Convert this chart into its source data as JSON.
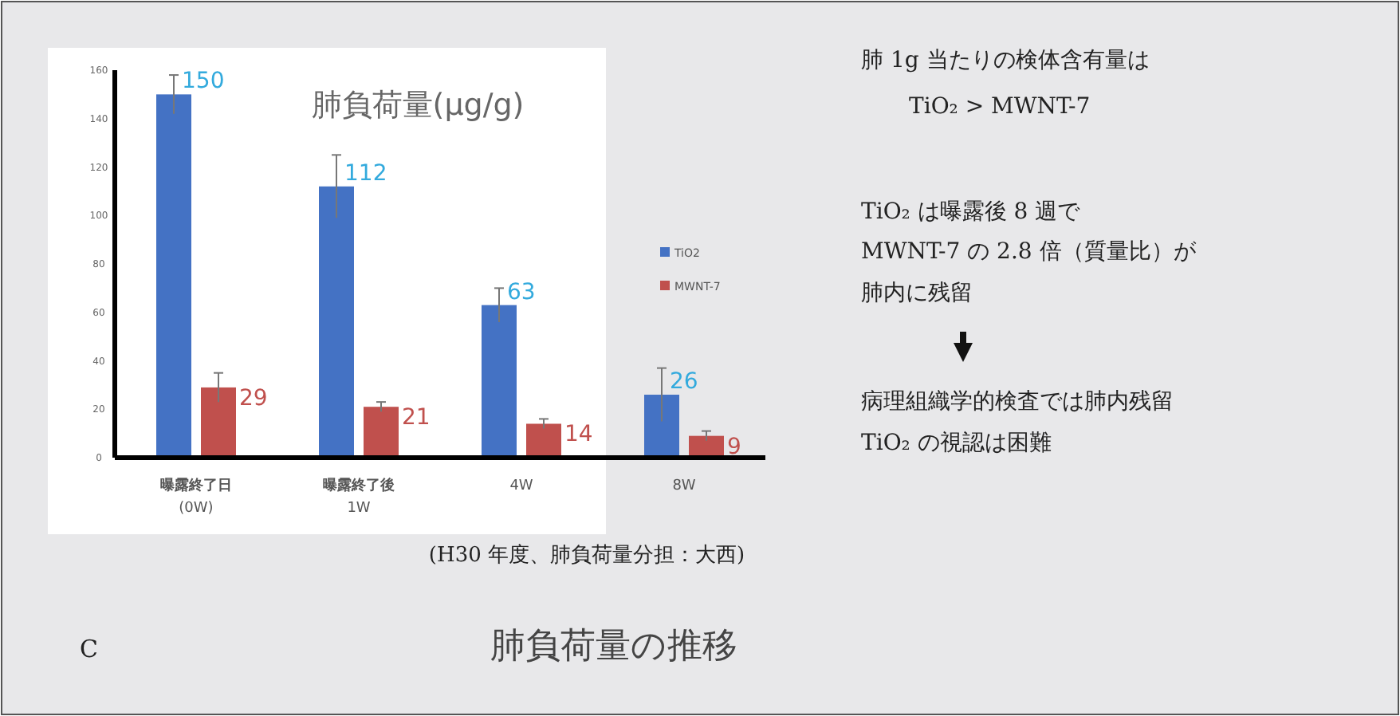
{
  "chart_data": {
    "type": "bar",
    "title": "肺負荷量(μg/g)",
    "subtitle": "肺負荷量の推移",
    "categories": [
      "曝露終了日\n(0W)",
      "曝露終了後\n1W",
      "4W",
      "8W"
    ],
    "series": [
      {
        "name": "TiO2",
        "color": "#4472c4",
        "values": [
          150,
          112,
          63,
          26
        ],
        "errors": [
          8,
          13,
          7,
          11
        ]
      },
      {
        "name": "MWNT-7",
        "color": "#c0504d",
        "values": [
          29,
          21,
          14,
          9
        ],
        "errors": [
          6,
          2,
          2,
          2
        ]
      }
    ],
    "ylim": [
      0,
      160
    ],
    "yticks": [
      0,
      20,
      40,
      60,
      80,
      100,
      120,
      140,
      160
    ],
    "grid": false,
    "legend": "right",
    "data_labels": true,
    "annotations": [
      "(H30 年度、肺負荷量分担：大西)",
      "C",
      "肺 1g 当たりの検体含有量は",
      "TiO₂ > MWNT-7",
      "TiO₂ は曝露後 8 週で",
      "MWNT-7 の 2.8 倍（質量比）が",
      "肺内に残留",
      "病理組織学的検査では肺内残留",
      "TiO₂ の視認は困難"
    ]
  }
}
